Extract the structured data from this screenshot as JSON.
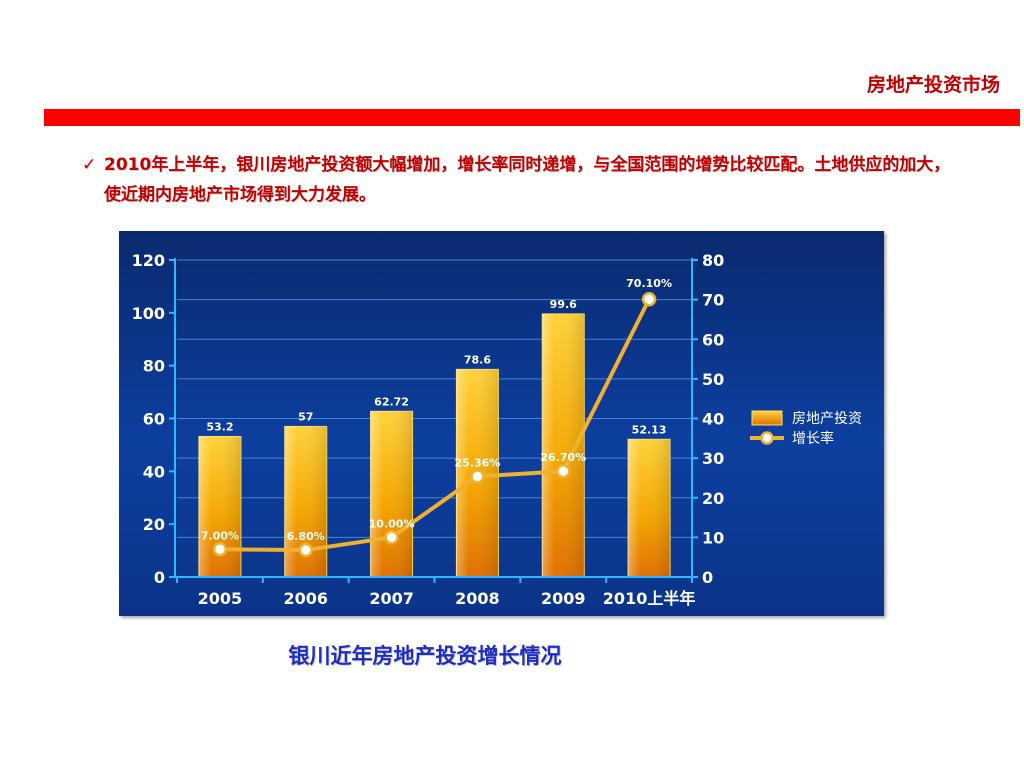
{
  "header": {
    "section_title": "房地产投资市场"
  },
  "bullet": {
    "icon": "check-icon",
    "glyph": "✓",
    "text": "2010年上半年，银川房地产投资额大幅增加，增长率同时递增，与全国范围的增势比较匹配。土地供应的加大，使近期内房地产市场得到大力发展。"
  },
  "caption": "银川近年房地产投资增长情况",
  "colors": {
    "accent_red": "#ff0000",
    "title_red": "#c00000",
    "caption_blue": "#1f2cc4",
    "chart_bg": "#0d3fa0",
    "bar_fill": "#f5a800",
    "line_color": "#f0b030"
  },
  "chart_data": {
    "type": "bar",
    "categories": [
      "2005",
      "2006",
      "2007",
      "2008",
      "2009",
      "2010上半年"
    ],
    "series": [
      {
        "name": "房地产投资",
        "type": "bar",
        "axis": "left",
        "values": [
          53.2,
          57,
          62.72,
          78.6,
          99.6,
          52.13
        ],
        "labels": [
          "53.2",
          "57",
          "62.72",
          "78.6",
          "99.6",
          "52.13"
        ]
      },
      {
        "name": "增长率",
        "type": "line",
        "axis": "right",
        "values": [
          7.0,
          6.8,
          10.0,
          25.36,
          26.7,
          70.1
        ],
        "labels": [
          "7.00%",
          "6.80%",
          "10.00%",
          "25.36%",
          "26.70%",
          "70.10%"
        ]
      }
    ],
    "y_left": {
      "min": 0,
      "max": 120,
      "ticks": [
        "0",
        "20",
        "40",
        "60",
        "80",
        "100",
        "120"
      ]
    },
    "y_right": {
      "min": 0,
      "max": 80,
      "ticks": [
        "0",
        "10",
        "20",
        "30",
        "40",
        "50",
        "60",
        "70",
        "80"
      ]
    },
    "grid": true,
    "legend": "right"
  }
}
